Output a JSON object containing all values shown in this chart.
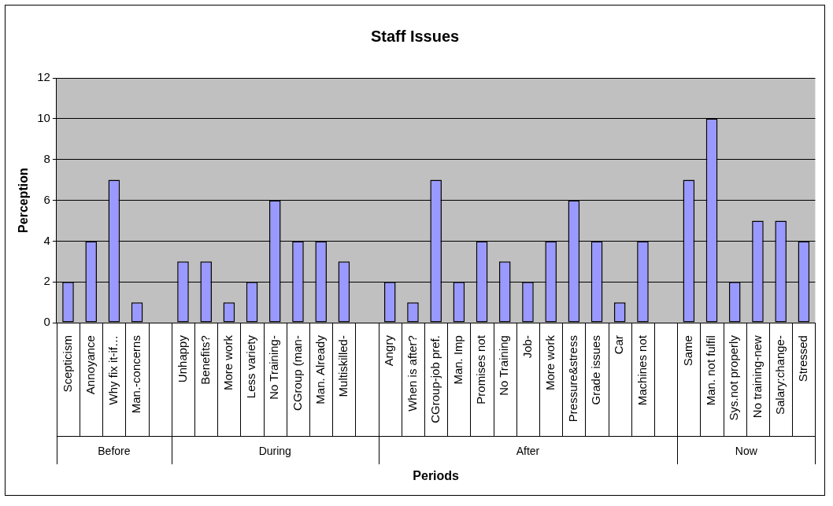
{
  "chart_data": {
    "type": "bar",
    "title": "Staff Issues",
    "xlabel": "Periods",
    "ylabel": "Perception",
    "categories": [
      "Scepticism",
      "Annoyance",
      "Why fix it-if…",
      "Man.-concerns",
      null,
      "Unhappy",
      "Benefits?",
      "More work",
      "Less variety",
      "No Training-",
      "CGroup (man-",
      "Man. Already",
      "Multiskilled-",
      null,
      "Angry",
      "When is after?",
      "CGroup-job pref.",
      "Man. Imp",
      "Promises not",
      "No Training",
      "Job-",
      "More work",
      "Pressure&stress",
      "Grade issues",
      "Car",
      "Machines not",
      null,
      "Same",
      "Man. not fulfil",
      "Sys.not properly",
      "No training-new",
      "Salary:change-",
      "Stressed"
    ],
    "values": [
      2,
      4,
      7,
      1,
      null,
      3,
      3,
      1,
      2,
      6,
      4,
      4,
      3,
      null,
      2,
      1,
      7,
      2,
      4,
      3,
      2,
      4,
      6,
      4,
      1,
      4,
      null,
      7,
      10,
      2,
      5,
      5,
      4
    ],
    "color": "#9999ff",
    "annotations": [
      "Before",
      "During",
      "After",
      "Now"
    ],
    "ylim": [
      0,
      12
    ],
    "yticks": [
      0,
      2,
      4,
      6,
      8,
      10,
      12
    ],
    "grid": "y",
    "legend": false
  }
}
